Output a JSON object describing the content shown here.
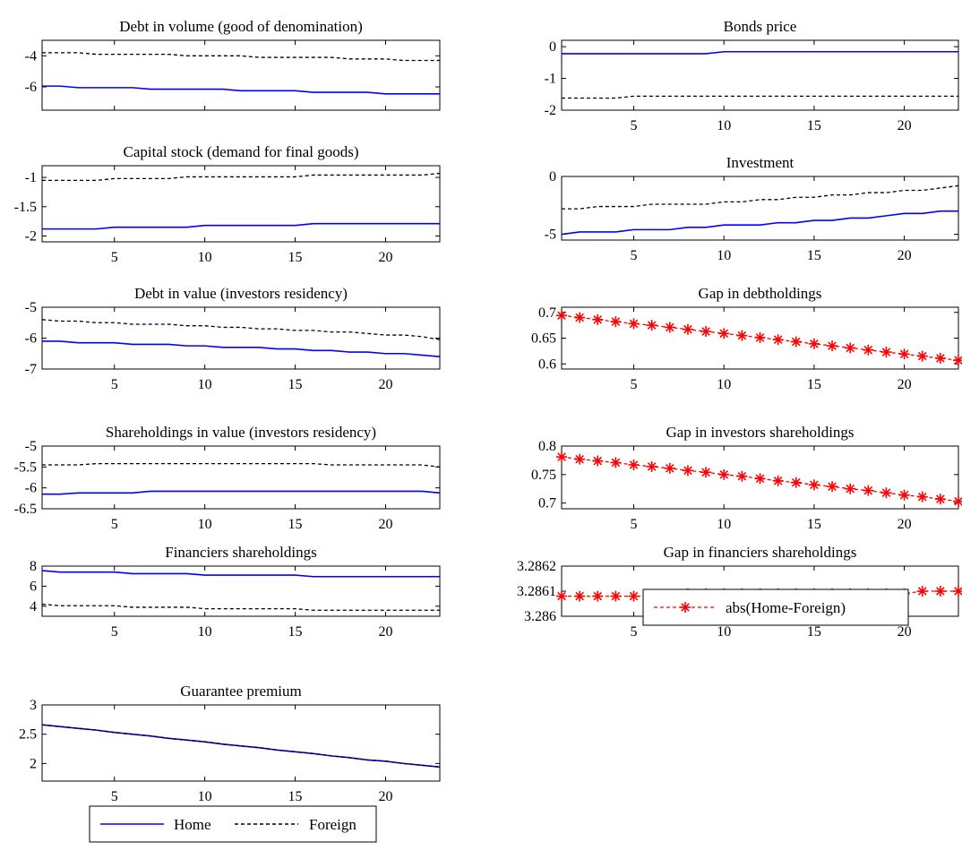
{
  "colors": {
    "home": "#0000ff",
    "foreign": "#000000",
    "gap": "#ff0000",
    "axis": "#000000"
  },
  "legend_left": {
    "home_label": "Home",
    "foreign_label": "Foreign"
  },
  "legend_right": {
    "gap_label": "abs(Home-Foreign)"
  },
  "chart_data": [
    {
      "type": "line",
      "title": "Debt in volume (good of denomination)",
      "xlim": [
        1,
        23
      ],
      "ylim": [
        -7.5,
        -3
      ],
      "xticks": [
        "5",
        "10",
        "15",
        "20"
      ],
      "yticks": [
        "-4",
        "-6"
      ],
      "x": [
        1,
        2,
        3,
        4,
        5,
        6,
        7,
        8,
        9,
        10,
        11,
        12,
        13,
        14,
        15,
        16,
        17,
        18,
        19,
        20,
        21,
        22,
        23
      ],
      "series": [
        {
          "name": "Home",
          "values": [
            -5.95,
            -5.95,
            -6.05,
            -6.05,
            -6.05,
            -6.05,
            -6.15,
            -6.15,
            -6.15,
            -6.15,
            -6.15,
            -6.25,
            -6.25,
            -6.25,
            -6.25,
            -6.35,
            -6.35,
            -6.35,
            -6.35,
            -6.45,
            -6.45,
            -6.45,
            -6.45
          ]
        },
        {
          "name": "Foreign",
          "values": [
            -3.8,
            -3.8,
            -3.8,
            -3.9,
            -3.9,
            -3.9,
            -3.9,
            -3.9,
            -4.0,
            -4.0,
            -4.0,
            -4.0,
            -4.1,
            -4.1,
            -4.1,
            -4.1,
            -4.1,
            -4.2,
            -4.2,
            -4.2,
            -4.3,
            -4.3,
            -4.3
          ]
        }
      ]
    },
    {
      "type": "line",
      "title": "Bonds price",
      "xlim": [
        1,
        23
      ],
      "ylim": [
        -2,
        0.2
      ],
      "xticks": [
        "5",
        "10",
        "15",
        "20"
      ],
      "yticks": [
        "0",
        "-1",
        "-2"
      ],
      "x": [
        1,
        2,
        3,
        4,
        5,
        6,
        7,
        8,
        9,
        10,
        11,
        12,
        13,
        14,
        15,
        16,
        17,
        18,
        19,
        20,
        21,
        22,
        23
      ],
      "series": [
        {
          "name": "Home",
          "values": [
            -0.22,
            -0.22,
            -0.22,
            -0.22,
            -0.22,
            -0.22,
            -0.22,
            -0.22,
            -0.22,
            -0.16,
            -0.16,
            -0.16,
            -0.16,
            -0.16,
            -0.16,
            -0.16,
            -0.16,
            -0.16,
            -0.16,
            -0.16,
            -0.16,
            -0.16,
            -0.16
          ]
        },
        {
          "name": "Foreign",
          "values": [
            -1.62,
            -1.62,
            -1.62,
            -1.62,
            -1.56,
            -1.56,
            -1.56,
            -1.56,
            -1.56,
            -1.56,
            -1.56,
            -1.56,
            -1.56,
            -1.56,
            -1.56,
            -1.56,
            -1.56,
            -1.56,
            -1.56,
            -1.56,
            -1.56,
            -1.56,
            -1.56
          ]
        }
      ]
    },
    {
      "type": "line",
      "title": "Capital stock (demand for final goods)",
      "xlim": [
        1,
        23
      ],
      "ylim": [
        -2.1,
        -0.8
      ],
      "xticks": [
        "5",
        "10",
        "15",
        "20"
      ],
      "yticks": [
        "-1",
        "-1.5",
        "-2"
      ],
      "x": [
        1,
        2,
        3,
        4,
        5,
        6,
        7,
        8,
        9,
        10,
        11,
        12,
        13,
        14,
        15,
        16,
        17,
        18,
        19,
        20,
        21,
        22,
        23
      ],
      "series": [
        {
          "name": "Home",
          "values": [
            -1.88,
            -1.88,
            -1.88,
            -1.88,
            -1.85,
            -1.85,
            -1.85,
            -1.85,
            -1.85,
            -1.82,
            -1.82,
            -1.82,
            -1.82,
            -1.82,
            -1.82,
            -1.79,
            -1.79,
            -1.79,
            -1.79,
            -1.79,
            -1.79,
            -1.79,
            -1.79
          ]
        },
        {
          "name": "Foreign",
          "values": [
            -1.05,
            -1.05,
            -1.05,
            -1.05,
            -1.02,
            -1.02,
            -1.02,
            -1.02,
            -0.99,
            -0.99,
            -0.99,
            -0.99,
            -0.99,
            -0.99,
            -0.99,
            -0.96,
            -0.96,
            -0.96,
            -0.96,
            -0.96,
            -0.96,
            -0.96,
            -0.93
          ]
        }
      ]
    },
    {
      "type": "line",
      "title": "Investment",
      "xlim": [
        1,
        23
      ],
      "ylim": [
        -5.5,
        0
      ],
      "xticks": [
        "5",
        "10",
        "15",
        "20"
      ],
      "yticks": [
        "0",
        "-5"
      ],
      "x": [
        1,
        2,
        3,
        4,
        5,
        6,
        7,
        8,
        9,
        10,
        11,
        12,
        13,
        14,
        15,
        16,
        17,
        18,
        19,
        20,
        21,
        22,
        23
      ],
      "series": [
        {
          "name": "Home",
          "values": [
            -5.0,
            -4.8,
            -4.8,
            -4.8,
            -4.6,
            -4.6,
            -4.6,
            -4.4,
            -4.4,
            -4.2,
            -4.2,
            -4.2,
            -4.0,
            -4.0,
            -3.8,
            -3.8,
            -3.6,
            -3.6,
            -3.4,
            -3.2,
            -3.2,
            -3.0,
            -3.0
          ]
        },
        {
          "name": "Foreign",
          "values": [
            -2.8,
            -2.8,
            -2.6,
            -2.6,
            -2.6,
            -2.4,
            -2.4,
            -2.4,
            -2.4,
            -2.2,
            -2.2,
            -2.0,
            -2.0,
            -1.8,
            -1.8,
            -1.6,
            -1.6,
            -1.4,
            -1.4,
            -1.2,
            -1.2,
            -1.0,
            -0.8
          ]
        }
      ]
    },
    {
      "type": "line",
      "title": "Debt in value (investors residency)",
      "xlim": [
        1,
        23
      ],
      "ylim": [
        -7,
        -5
      ],
      "xticks": [
        "5",
        "10",
        "15",
        "20"
      ],
      "yticks": [
        "-5",
        "-6",
        "-7"
      ],
      "x": [
        1,
        2,
        3,
        4,
        5,
        6,
        7,
        8,
        9,
        10,
        11,
        12,
        13,
        14,
        15,
        16,
        17,
        18,
        19,
        20,
        21,
        22,
        23
      ],
      "series": [
        {
          "name": "Home",
          "values": [
            -6.1,
            -6.1,
            -6.15,
            -6.15,
            -6.15,
            -6.2,
            -6.2,
            -6.2,
            -6.25,
            -6.25,
            -6.3,
            -6.3,
            -6.3,
            -6.35,
            -6.35,
            -6.4,
            -6.4,
            -6.45,
            -6.45,
            -6.5,
            -6.5,
            -6.55,
            -6.6
          ]
        },
        {
          "name": "Foreign",
          "values": [
            -5.4,
            -5.45,
            -5.45,
            -5.5,
            -5.5,
            -5.55,
            -5.55,
            -5.55,
            -5.6,
            -5.6,
            -5.65,
            -5.65,
            -5.7,
            -5.7,
            -5.75,
            -5.75,
            -5.8,
            -5.8,
            -5.85,
            -5.9,
            -5.9,
            -5.95,
            -6.05
          ]
        }
      ]
    },
    {
      "type": "line",
      "title": "Gap in debtholdings",
      "xlim": [
        1,
        23
      ],
      "ylim": [
        0.59,
        0.71
      ],
      "xticks": [
        "5",
        "10",
        "15",
        "20"
      ],
      "yticks": [
        "0.7",
        "0.65",
        "0.6"
      ],
      "x": [
        1,
        2,
        3,
        4,
        5,
        6,
        7,
        8,
        9,
        10,
        11,
        12,
        13,
        14,
        15,
        16,
        17,
        18,
        19,
        20,
        21,
        22,
        23
      ],
      "series": [
        {
          "name": "abs(Home-Foreign)",
          "values": [
            0.694,
            0.69,
            0.686,
            0.682,
            0.678,
            0.675,
            0.671,
            0.667,
            0.663,
            0.659,
            0.655,
            0.651,
            0.647,
            0.643,
            0.639,
            0.635,
            0.631,
            0.627,
            0.623,
            0.619,
            0.615,
            0.611,
            0.607
          ]
        }
      ]
    },
    {
      "type": "line",
      "title": "Shareholdings in value (investors residency)",
      "xlim": [
        1,
        23
      ],
      "ylim": [
        -6.5,
        -5
      ],
      "xticks": [
        "5",
        "10",
        "15",
        "20"
      ],
      "yticks": [
        "-5",
        "-5.5",
        "-6",
        "-6.5"
      ],
      "x": [
        1,
        2,
        3,
        4,
        5,
        6,
        7,
        8,
        9,
        10,
        11,
        12,
        13,
        14,
        15,
        16,
        17,
        18,
        19,
        20,
        21,
        22,
        23
      ],
      "series": [
        {
          "name": "Home",
          "values": [
            -6.15,
            -6.15,
            -6.12,
            -6.12,
            -6.12,
            -6.12,
            -6.08,
            -6.08,
            -6.08,
            -6.08,
            -6.08,
            -6.08,
            -6.08,
            -6.08,
            -6.08,
            -6.08,
            -6.08,
            -6.08,
            -6.08,
            -6.08,
            -6.08,
            -6.08,
            -6.12
          ]
        },
        {
          "name": "Foreign",
          "values": [
            -5.45,
            -5.45,
            -5.45,
            -5.42,
            -5.42,
            -5.42,
            -5.42,
            -5.42,
            -5.42,
            -5.42,
            -5.42,
            -5.42,
            -5.42,
            -5.42,
            -5.42,
            -5.42,
            -5.45,
            -5.45,
            -5.45,
            -5.45,
            -5.45,
            -5.45,
            -5.5
          ]
        }
      ]
    },
    {
      "type": "line",
      "title": "Gap in investors shareholdings",
      "xlim": [
        1,
        23
      ],
      "ylim": [
        0.69,
        0.8
      ],
      "xticks": [
        "5",
        "10",
        "15",
        "20"
      ],
      "yticks": [
        "0.8",
        "0.75",
        "0.7"
      ],
      "x": [
        1,
        2,
        3,
        4,
        5,
        6,
        7,
        8,
        9,
        10,
        11,
        12,
        13,
        14,
        15,
        16,
        17,
        18,
        19,
        20,
        21,
        22,
        23
      ],
      "series": [
        {
          "name": "abs(Home-Foreign)",
          "values": [
            0.781,
            0.777,
            0.774,
            0.771,
            0.767,
            0.764,
            0.761,
            0.757,
            0.754,
            0.75,
            0.747,
            0.743,
            0.739,
            0.736,
            0.732,
            0.729,
            0.725,
            0.722,
            0.718,
            0.714,
            0.711,
            0.707,
            0.703
          ]
        }
      ]
    },
    {
      "type": "line",
      "title": "Financiers shareholdings",
      "xlim": [
        1,
        23
      ],
      "ylim": [
        3,
        8
      ],
      "xticks": [
        "5",
        "10",
        "15",
        "20"
      ],
      "yticks": [
        "8",
        "6",
        "4"
      ],
      "x": [
        1,
        2,
        3,
        4,
        5,
        6,
        7,
        8,
        9,
        10,
        11,
        12,
        13,
        14,
        15,
        16,
        17,
        18,
        19,
        20,
        21,
        22,
        23
      ],
      "series": [
        {
          "name": "Home",
          "values": [
            7.55,
            7.4,
            7.4,
            7.4,
            7.4,
            7.25,
            7.25,
            7.25,
            7.25,
            7.1,
            7.1,
            7.1,
            7.1,
            7.1,
            7.1,
            6.95,
            6.95,
            6.95,
            6.95,
            6.95,
            6.95,
            6.95,
            6.95
          ]
        },
        {
          "name": "Foreign",
          "values": [
            4.2,
            4.05,
            4.05,
            4.05,
            4.05,
            3.9,
            3.9,
            3.9,
            3.9,
            3.75,
            3.75,
            3.75,
            3.75,
            3.75,
            3.75,
            3.6,
            3.6,
            3.6,
            3.6,
            3.6,
            3.6,
            3.6,
            3.6
          ]
        }
      ]
    },
    {
      "type": "line",
      "title": "Gap in financiers shareholdings",
      "xlim": [
        1,
        23
      ],
      "ylim": [
        3.286,
        3.2862
      ],
      "xticks": [
        "5",
        "10",
        "15",
        "20"
      ],
      "yticks": [
        "3.2862",
        "3.2861",
        "3.286"
      ],
      "x": [
        1,
        2,
        3,
        4,
        5,
        6,
        7,
        8,
        9,
        10,
        11,
        12,
        13,
        14,
        15,
        16,
        17,
        18,
        19,
        20,
        21,
        22,
        23
      ],
      "series": [
        {
          "name": "abs(Home-Foreign)",
          "values": [
            3.28608,
            3.28608,
            3.28608,
            3.28608,
            3.28608,
            3.28608,
            3.28608,
            3.28609,
            3.28609,
            3.28609,
            3.28609,
            3.28609,
            3.28609,
            3.28609,
            3.28609,
            3.28609,
            3.28609,
            3.28609,
            3.28609,
            3.28609,
            3.2861,
            3.2861,
            3.2861
          ]
        }
      ]
    },
    {
      "type": "line",
      "title": "Guarantee premium",
      "xlim": [
        1,
        23
      ],
      "ylim": [
        1.7,
        3
      ],
      "xticks": [
        "5",
        "10",
        "15",
        "20"
      ],
      "yticks": [
        "3",
        "2.5",
        "2"
      ],
      "x": [
        1,
        2,
        3,
        4,
        5,
        6,
        7,
        8,
        9,
        10,
        11,
        12,
        13,
        14,
        15,
        16,
        17,
        18,
        19,
        20,
        21,
        22,
        23
      ],
      "series": [
        {
          "name": "Home",
          "values": [
            2.66,
            2.63,
            2.6,
            2.57,
            2.53,
            2.5,
            2.47,
            2.43,
            2.4,
            2.37,
            2.33,
            2.3,
            2.27,
            2.23,
            2.2,
            2.17,
            2.13,
            2.1,
            2.06,
            2.04,
            2.0,
            1.97,
            1.94
          ]
        },
        {
          "name": "Foreign",
          "values": [
            2.66,
            2.63,
            2.6,
            2.57,
            2.53,
            2.5,
            2.47,
            2.43,
            2.4,
            2.37,
            2.33,
            2.3,
            2.27,
            2.23,
            2.2,
            2.17,
            2.13,
            2.1,
            2.06,
            2.04,
            2.0,
            1.97,
            1.94
          ]
        }
      ]
    }
  ]
}
